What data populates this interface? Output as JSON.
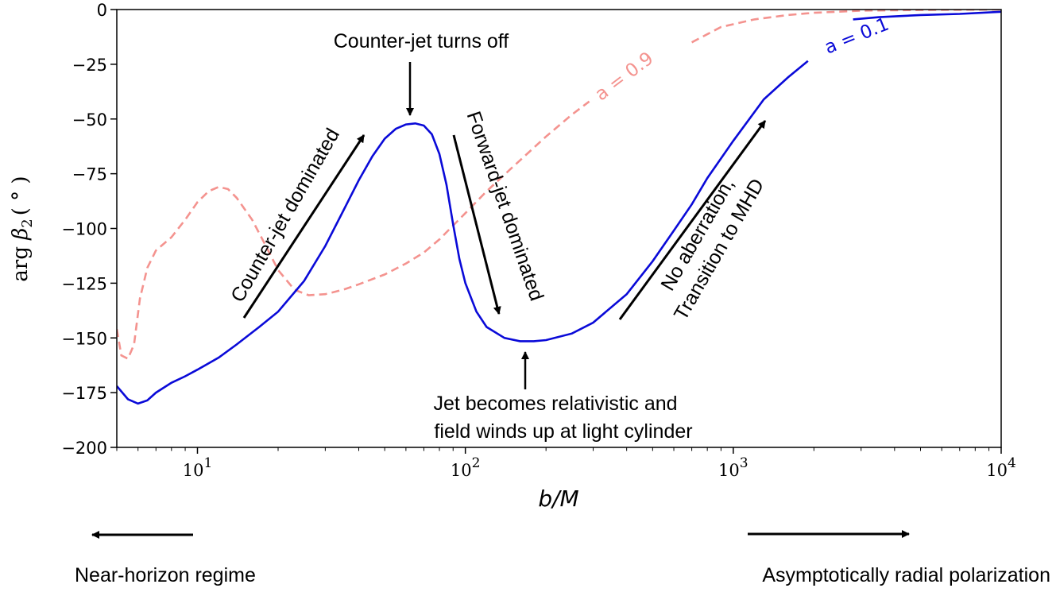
{
  "chart_data": {
    "type": "line",
    "title": "",
    "xlabel": "b/M",
    "ylabel_main": "arg",
    "ylabel_symbol": "β",
    "ylabel_sub": "2",
    "ylabel_unit": "( ° )",
    "xscale": "log",
    "xlim": [
      5,
      10000
    ],
    "ylim": [
      -200,
      0
    ],
    "grid": false,
    "x_ticks": [
      {
        "value": 10,
        "base": "10",
        "exp": "1"
      },
      {
        "value": 100,
        "base": "10",
        "exp": "2"
      },
      {
        "value": 1000,
        "base": "10",
        "exp": "3"
      },
      {
        "value": 10000,
        "base": "10",
        "exp": "4"
      }
    ],
    "y_ticks": [
      {
        "value": 0,
        "label": "0"
      },
      {
        "value": -25,
        "label": "−25"
      },
      {
        "value": -50,
        "label": "−50"
      },
      {
        "value": -75,
        "label": "−75"
      },
      {
        "value": -100,
        "label": "−100"
      },
      {
        "value": -125,
        "label": "−125"
      },
      {
        "value": -150,
        "label": "−150"
      },
      {
        "value": -175,
        "label": "−175"
      },
      {
        "value": -200,
        "label": "−200"
      }
    ],
    "series": [
      {
        "name": "a = 0.1",
        "color": "#0a0ad8",
        "style": "solid",
        "label_at": [
          2450,
          -15
        ],
        "gap_x": [
          1900,
          2800
        ],
        "points": [
          [
            5,
            -172
          ],
          [
            5.5,
            -178
          ],
          [
            6,
            -180
          ],
          [
            6.5,
            -178.5
          ],
          [
            7,
            -175
          ],
          [
            8,
            -170.5
          ],
          [
            9,
            -167.5
          ],
          [
            10,
            -164.5
          ],
          [
            12,
            -159
          ],
          [
            14,
            -153
          ],
          [
            17,
            -145
          ],
          [
            20,
            -138
          ],
          [
            25,
            -124
          ],
          [
            30,
            -108
          ],
          [
            35,
            -92
          ],
          [
            40,
            -78
          ],
          [
            45,
            -67
          ],
          [
            50,
            -59
          ],
          [
            55,
            -54.5
          ],
          [
            60,
            -52.5
          ],
          [
            65,
            -52
          ],
          [
            70,
            -53
          ],
          [
            75,
            -57
          ],
          [
            80,
            -66
          ],
          [
            85,
            -80
          ],
          [
            90,
            -98
          ],
          [
            95,
            -114
          ],
          [
            100,
            -125
          ],
          [
            110,
            -138
          ],
          [
            120,
            -145
          ],
          [
            140,
            -150
          ],
          [
            160,
            -151.5
          ],
          [
            180,
            -151.5
          ],
          [
            200,
            -151
          ],
          [
            250,
            -148
          ],
          [
            300,
            -143
          ],
          [
            400,
            -130
          ],
          [
            500,
            -115
          ],
          [
            600,
            -101
          ],
          [
            700,
            -89
          ],
          [
            800,
            -77
          ],
          [
            1000,
            -60
          ],
          [
            1300,
            -41
          ],
          [
            1600,
            -31
          ],
          [
            1900,
            -23.5
          ],
          [
            2800,
            -4.5
          ],
          [
            3500,
            -3.5
          ],
          [
            5000,
            -2.5
          ],
          [
            7000,
            -2
          ],
          [
            10000,
            -1
          ]
        ]
      },
      {
        "name": "a = 0.9",
        "color": "#f4938f",
        "style": "dashed",
        "label_at": [
          420,
          -37
        ],
        "gap_x": [
          290,
          700
        ],
        "points": [
          [
            5,
            -146
          ],
          [
            5.2,
            -158
          ],
          [
            5.5,
            -159.5
          ],
          [
            5.8,
            -153
          ],
          [
            6.1,
            -132
          ],
          [
            6.5,
            -118
          ],
          [
            7,
            -110
          ],
          [
            8,
            -104
          ],
          [
            9,
            -96
          ],
          [
            10,
            -88
          ],
          [
            11,
            -83
          ],
          [
            12,
            -81
          ],
          [
            13,
            -82
          ],
          [
            14,
            -86
          ],
          [
            16,
            -96
          ],
          [
            18,
            -108
          ],
          [
            20,
            -119
          ],
          [
            23,
            -128
          ],
          [
            26,
            -130.5
          ],
          [
            30,
            -130
          ],
          [
            35,
            -128
          ],
          [
            40,
            -125.5
          ],
          [
            50,
            -121
          ],
          [
            60,
            -116
          ],
          [
            70,
            -111
          ],
          [
            80,
            -105
          ],
          [
            100,
            -93
          ],
          [
            120,
            -83
          ],
          [
            150,
            -72
          ],
          [
            200,
            -58
          ],
          [
            250,
            -48
          ],
          [
            290,
            -42
          ],
          [
            700,
            -15
          ],
          [
            900,
            -8
          ],
          [
            1200,
            -4.5
          ],
          [
            1600,
            -2.5
          ],
          [
            2000,
            -1.5
          ],
          [
            3000,
            -0.5
          ],
          [
            5000,
            -0.2
          ],
          [
            7000,
            -0.1
          ],
          [
            10000,
            0
          ]
        ]
      }
    ],
    "annotations": [
      {
        "text": "Counter-jet turns off"
      },
      {
        "text": "Counter-jet dominated"
      },
      {
        "text": "Forward-jet dominated"
      },
      {
        "text": "No aberration,"
      },
      {
        "text": "Transition to MHD"
      },
      {
        "text": "Jet becomes relativistic and"
      },
      {
        "text": "field winds up at light cylinder"
      }
    ]
  },
  "bottom": {
    "left_label": "Near-horizon regime",
    "right_label": "Asymptotically radial polarization"
  }
}
